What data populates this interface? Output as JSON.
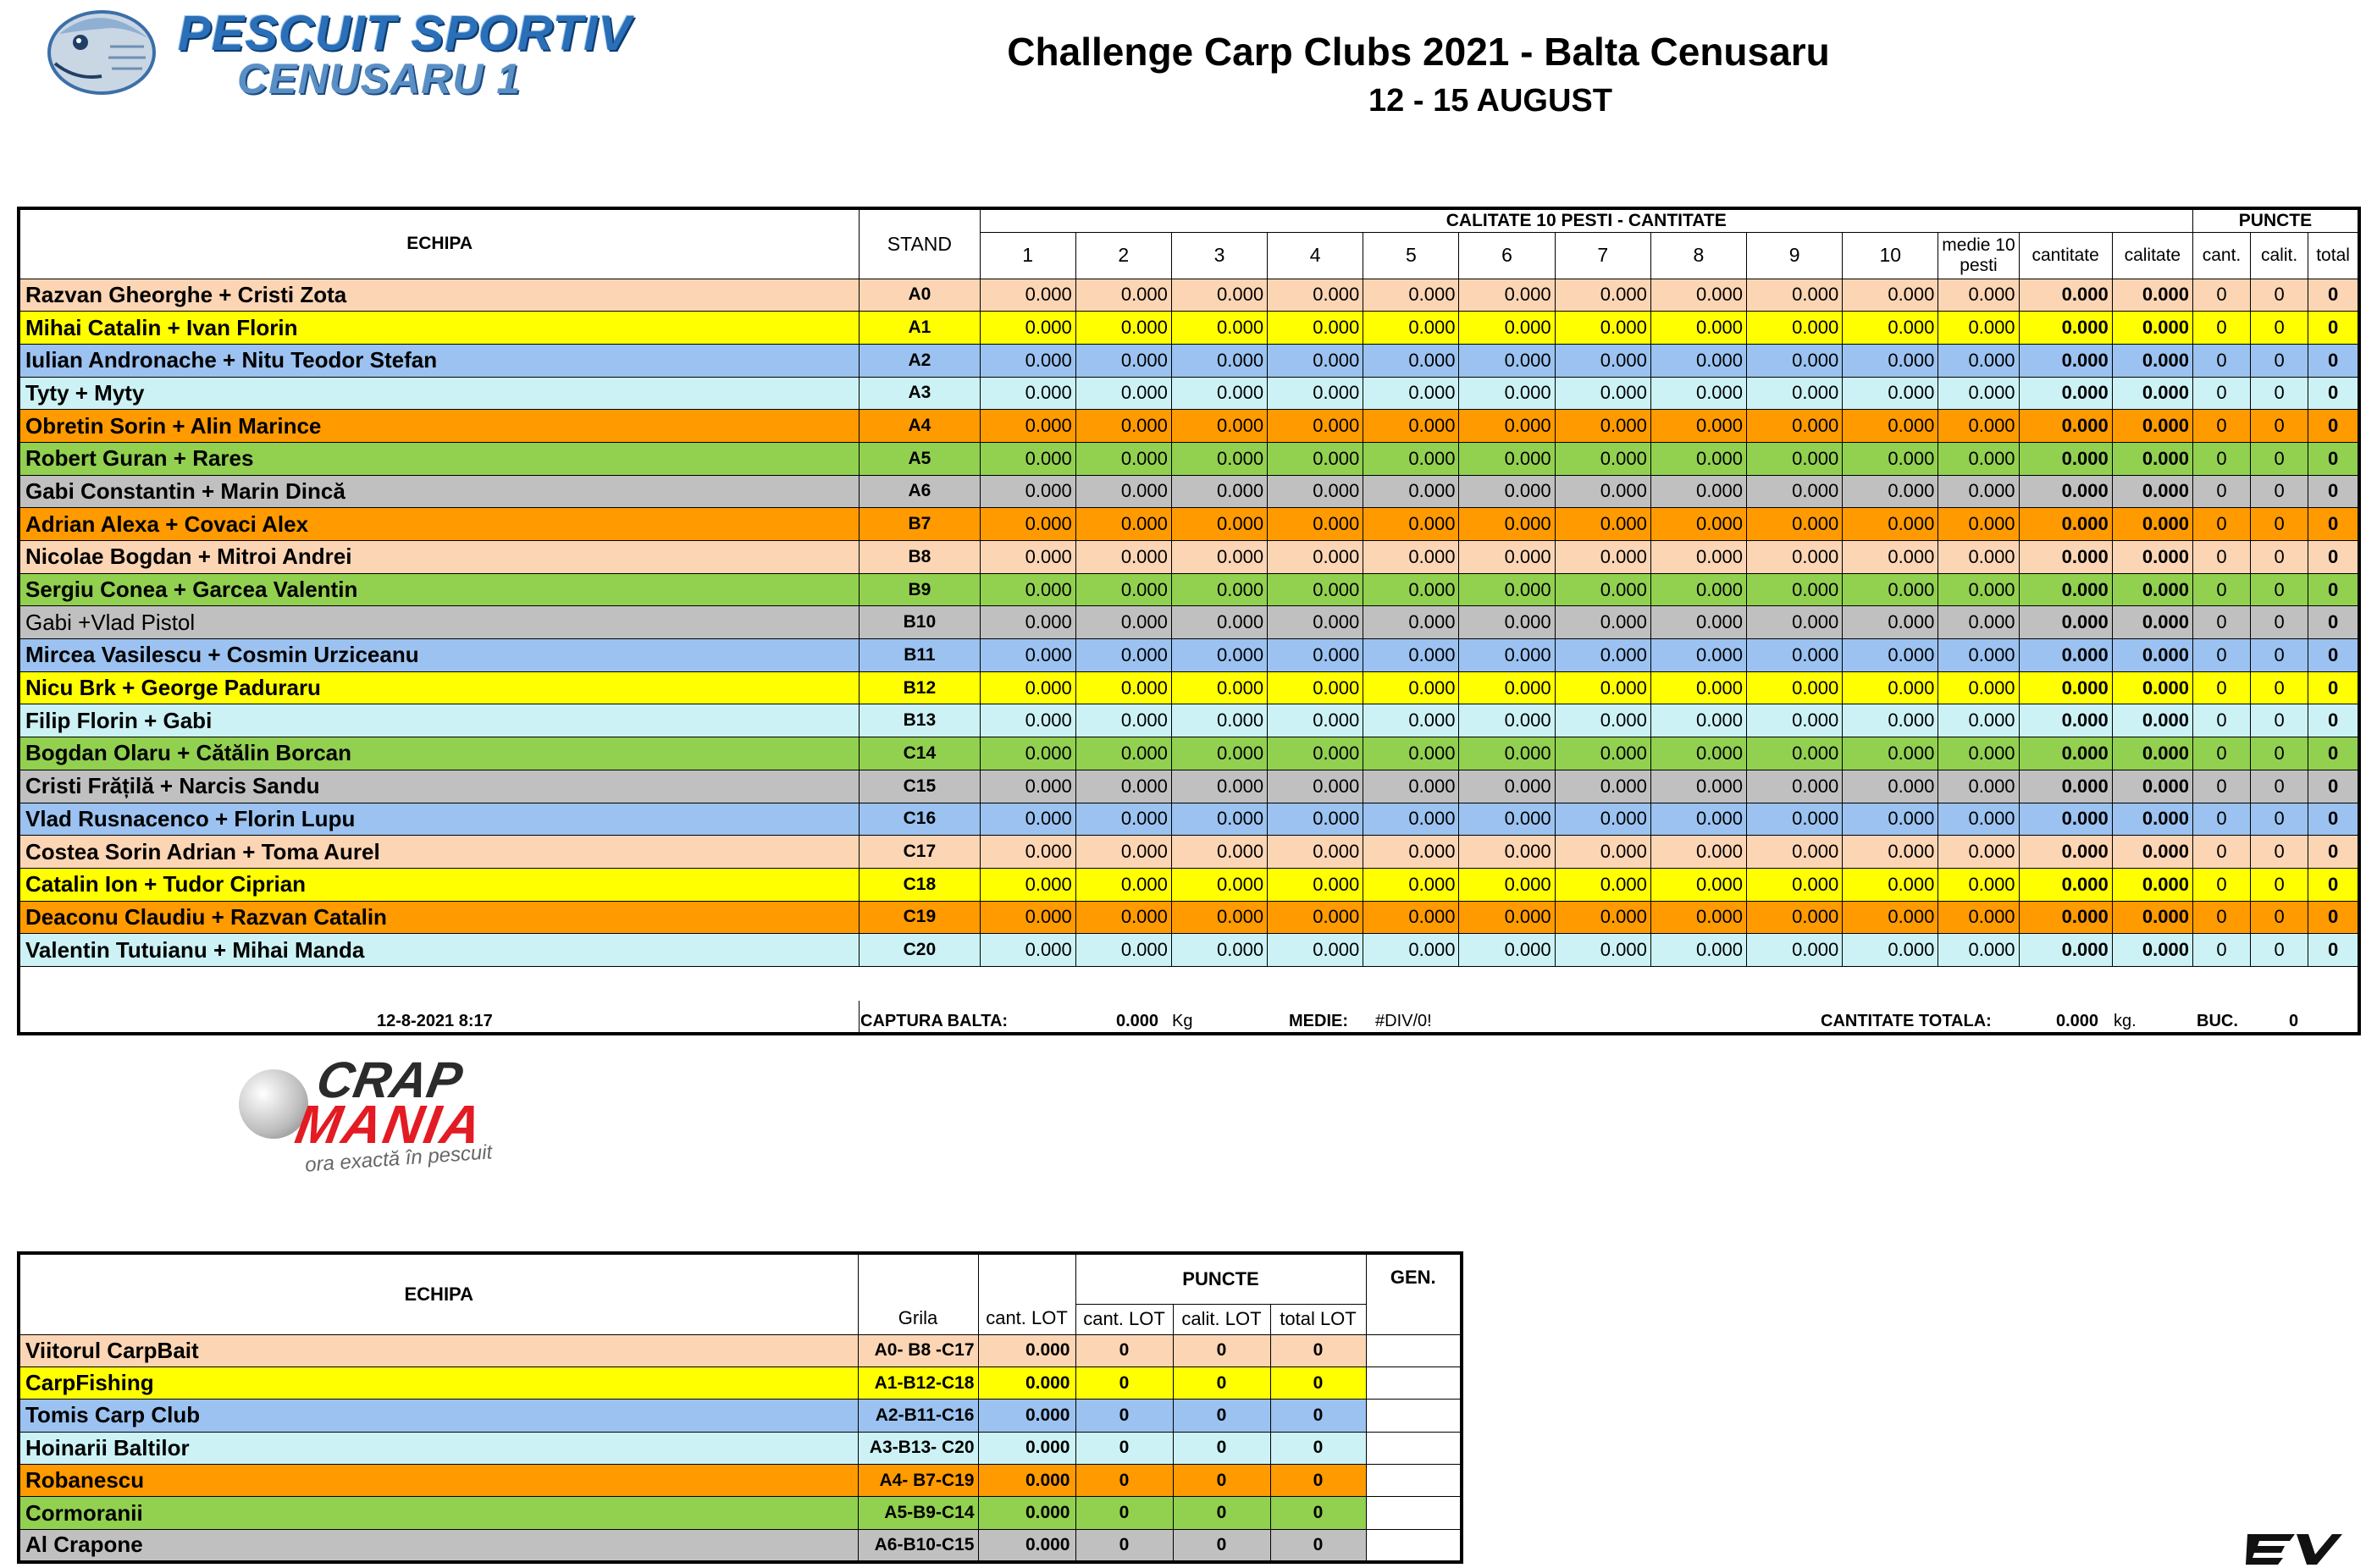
{
  "header": {
    "logo_line1": "PESCUIT SPORTIV",
    "logo_line2": "CENUSARU 1",
    "title": "Challenge Carp Clubs 2021 - Balta Cenusaru",
    "subtitle": "12 - 15 AUGUST"
  },
  "main_table": {
    "col_echipa": "ECHIPA",
    "col_stand": "STAND",
    "group_calitate": "CALITATE 10 PESTI - CANTITATE",
    "group_puncte": "PUNCTE",
    "fish_cols": [
      "1",
      "2",
      "3",
      "4",
      "5",
      "6",
      "7",
      "8",
      "9",
      "10"
    ],
    "col_medie": "medie 10 pesti",
    "col_cantitate": "cantitate",
    "col_calitate": "calitate",
    "col_cant": "cant.",
    "col_calit": "calit.",
    "col_total": "total",
    "rows": [
      {
        "team": "Razvan Gheorghe + Cristi Zota",
        "stand": "A0",
        "color": "peach",
        "bold": true
      },
      {
        "team": "Mihai Catalin + Ivan Florin",
        "stand": "A1",
        "color": "yellow",
        "bold": true
      },
      {
        "team": "Iulian Andronache + Nitu Teodor Stefan",
        "stand": "A2",
        "color": "blue",
        "bold": true
      },
      {
        "team": "Tyty + Myty",
        "stand": "A3",
        "color": "cyan",
        "bold": true
      },
      {
        "team": "Obretin Sorin + Alin Marince",
        "stand": "A4",
        "color": "orange",
        "bold": true
      },
      {
        "team": "Robert Guran + Rares",
        "stand": "A5",
        "color": "green",
        "bold": true
      },
      {
        "team": "Gabi Constantin + Marin Dincă",
        "stand": "A6",
        "color": "grey",
        "bold": true
      },
      {
        "team": "Adrian Alexa + Covaci Alex",
        "stand": "B7",
        "color": "orange",
        "bold": true
      },
      {
        "team": "Nicolae Bogdan + Mitroi Andrei",
        "stand": "B8",
        "color": "peach",
        "bold": true
      },
      {
        "team": "Sergiu Conea + Garcea Valentin",
        "stand": "B9",
        "color": "green",
        "bold": true
      },
      {
        "team": "Gabi +Vlad Pistol",
        "stand": "B10",
        "color": "grey",
        "bold": false
      },
      {
        "team": "Mircea Vasilescu + Cosmin Urziceanu",
        "stand": "B11",
        "color": "blue",
        "bold": true
      },
      {
        "team": "Nicu Brk + George Paduraru",
        "stand": "B12",
        "color": "yellow",
        "bold": true
      },
      {
        "team": "Filip Florin + Gabi",
        "stand": "B13",
        "color": "cyan",
        "bold": true
      },
      {
        "team": "Bogdan Olaru + Cătălin Borcan",
        "stand": "C14",
        "color": "green",
        "bold": true
      },
      {
        "team": "Cristi Frățilă + Narcis Sandu",
        "stand": "C15",
        "color": "grey",
        "bold": true
      },
      {
        "team": "Vlad Rusnacenco + Florin Lupu",
        "stand": "C16",
        "color": "blue",
        "bold": true
      },
      {
        "team": "Costea Sorin Adrian + Toma Aurel",
        "stand": "C17",
        "color": "peach",
        "bold": true
      },
      {
        "team": "Catalin Ion + Tudor Ciprian",
        "stand": "C18",
        "color": "yellow",
        "bold": true
      },
      {
        "team": "Deaconu Claudiu + Razvan Catalin",
        "stand": "C19",
        "color": "orange",
        "bold": true
      },
      {
        "team": "Valentin Tutuianu + Mihai Manda",
        "stand": "C20",
        "color": "cyan",
        "bold": true
      }
    ],
    "zero_value": "0.000",
    "zero_points": "0"
  },
  "footer": {
    "timestamp": "12-8-2021 8:17",
    "captura_label": "CAPTURA BALTA:",
    "captura_value": "0.000",
    "captura_unit": "Kg",
    "medie_label": "MEDIE:",
    "medie_value": "#DIV/0!",
    "cantitate_label": "CANTITATE TOTALA:",
    "cantitate_value": "0.000",
    "cantitate_unit": "kg.",
    "buc_label": "BUC.",
    "buc_value": "0"
  },
  "sponsor": {
    "line1": "CRAP",
    "line2": "MANIA",
    "tagline": "ora exactă în pescuit"
  },
  "lot_table": {
    "col_echipa": "ECHIPA",
    "col_grila": "Grila",
    "col_cant_lot": "cant. LOT",
    "group_puncte": "PUNCTE",
    "col_gen": "GEN.",
    "col_p_cant": "cant. LOT",
    "col_p_calit": "calit. LOT",
    "col_p_total": "total LOT",
    "rows": [
      {
        "team": "Viitorul CarpBait",
        "grila": "A0- B8 -C17",
        "cant": "0.000",
        "p1": "0",
        "p2": "0",
        "p3": "0",
        "color": "peach"
      },
      {
        "team": "CarpFishing",
        "grila": "A1-B12-C18",
        "cant": "0.000",
        "p1": "0",
        "p2": "0",
        "p3": "0",
        "color": "yellow"
      },
      {
        "team": "Tomis Carp Club",
        "grila": "A2-B11-C16",
        "cant": "0.000",
        "p1": "0",
        "p2": "0",
        "p3": "0",
        "color": "blue"
      },
      {
        "team": "Hoinarii Baltilor",
        "grila": "A3-B13- C20",
        "cant": "0.000",
        "p1": "0",
        "p2": "0",
        "p3": "0",
        "color": "cyan"
      },
      {
        "team": "Robanescu",
        "grila": "A4- B7-C19",
        "cant": "0.000",
        "p1": "0",
        "p2": "0",
        "p3": "0",
        "color": "orange"
      },
      {
        "team": "Cormoranii",
        "grila": "A5-B9-C14",
        "cant": "0.000",
        "p1": "0",
        "p2": "0",
        "p3": "0",
        "color": "green"
      },
      {
        "team": "Al Crapone",
        "grila": "A6-B10-C15",
        "cant": "0.000",
        "p1": "0",
        "p2": "0",
        "p3": "0",
        "color": "grey"
      }
    ]
  },
  "icons": {
    "logo_fish": "carp-fish-icon",
    "sponsor_ball": "boilie-ball-icon",
    "corner_logo": "ev-logo-icon"
  }
}
